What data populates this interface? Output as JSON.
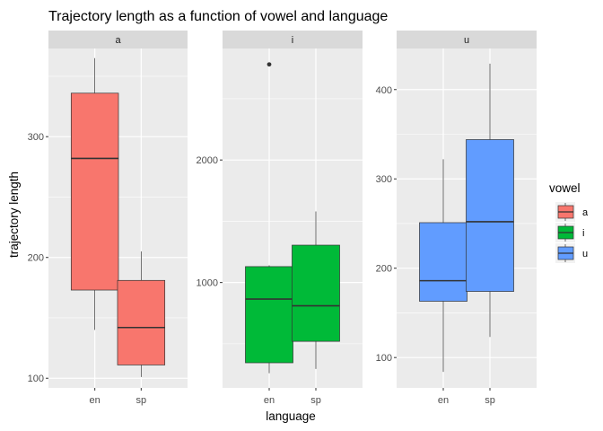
{
  "chart_data": {
    "type": "boxplot",
    "title": "Trajectory length as a function of vowel and language",
    "xlabel": "language",
    "ylabel": "trajectory length",
    "categories": [
      "en",
      "sp"
    ],
    "legend": {
      "title": "vowel",
      "position": "right",
      "entries": [
        {
          "label": "a",
          "color": "#F8766D"
        },
        {
          "label": "i",
          "color": "#00BA38"
        },
        {
          "label": "u",
          "color": "#619CFF"
        }
      ]
    },
    "facets": [
      {
        "strip": "a",
        "fill": "#F8766D",
        "ylim": [
          92,
          373
        ],
        "yticks": [
          100,
          200,
          300
        ],
        "boxes": [
          {
            "category": "en",
            "min": 140,
            "q1": 173,
            "median": 282,
            "q3": 336,
            "max": 365,
            "outliers": []
          },
          {
            "category": "sp",
            "min": 101,
            "q1": 111,
            "median": 142,
            "q3": 181,
            "max": 205,
            "outliers": []
          }
        ]
      },
      {
        "strip": "i",
        "fill": "#00BA38",
        "ylim": [
          140,
          2910
        ],
        "yticks": [
          1000,
          2000
        ],
        "boxes": [
          {
            "category": "en",
            "min": 260,
            "q1": 345,
            "median": 865,
            "q3": 1130,
            "max": 1140,
            "outliers": [
              2780
            ]
          },
          {
            "category": "sp",
            "min": 295,
            "q1": 520,
            "median": 810,
            "q3": 1305,
            "max": 1580,
            "outliers": []
          }
        ]
      },
      {
        "strip": "u",
        "fill": "#619CFF",
        "ylim": [
          66,
          446
        ],
        "yticks": [
          100,
          200,
          300,
          400
        ],
        "boxes": [
          {
            "category": "en",
            "min": 84,
            "q1": 163,
            "median": 186,
            "q3": 251,
            "max": 322,
            "outliers": []
          },
          {
            "category": "sp",
            "min": 123,
            "q1": 174,
            "median": 252,
            "q3": 344,
            "max": 429,
            "outliers": []
          }
        ]
      }
    ]
  }
}
